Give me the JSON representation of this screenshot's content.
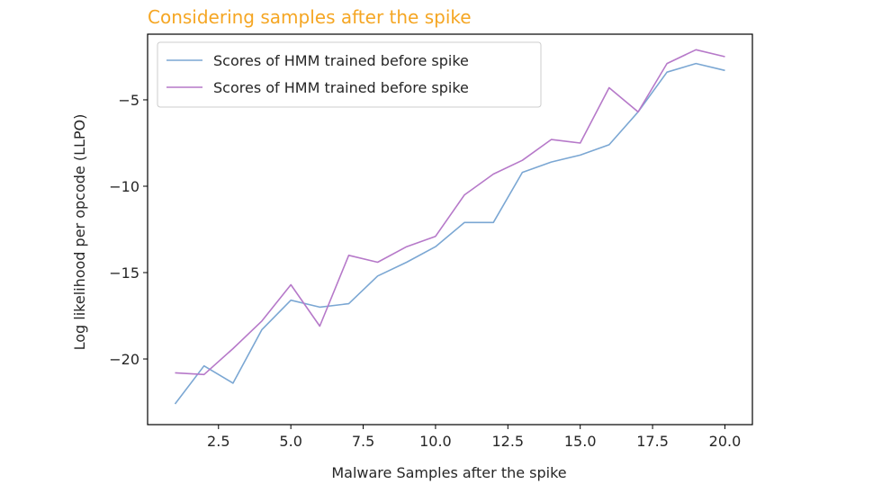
{
  "chart_data": {
    "type": "line",
    "title": "Considering samples after the spike",
    "title_color": "#f5a623",
    "xlabel": "Malware Samples after the spike",
    "ylabel": "Log likelihood per opcode (LLPO)",
    "xlim": [
      0.05,
      20.95
    ],
    "ylim": [
      -23.8,
      -1.2
    ],
    "xticks": [
      2.5,
      5.0,
      7.5,
      10.0,
      12.5,
      15.0,
      17.5,
      20.0
    ],
    "xtick_labels": [
      "2.5",
      "5.0",
      "7.5",
      "10.0",
      "12.5",
      "15.0",
      "17.5",
      "20.0"
    ],
    "yticks": [
      -20,
      -15,
      -10,
      -5
    ],
    "ytick_labels": [
      "−20",
      "−15",
      "−10",
      "−5"
    ],
    "legend_position": "top-left",
    "grid": false,
    "x": [
      1,
      2,
      3,
      4,
      5,
      6,
      7,
      8,
      9,
      10,
      11,
      12,
      13,
      14,
      15,
      16,
      17,
      18,
      19,
      20
    ],
    "series": [
      {
        "name": "Scores of HMM trained before spike",
        "color": "#7ba7d3",
        "values": [
          -22.6,
          -20.4,
          -21.4,
          -18.3,
          -16.6,
          -17.0,
          -16.8,
          -15.2,
          -14.4,
          -13.5,
          -12.1,
          -12.1,
          -9.2,
          -8.6,
          -8.2,
          -7.6,
          -5.7,
          -3.4,
          -2.9,
          -3.3
        ]
      },
      {
        "name": "Scores of HMM trained before spike",
        "color": "#b679c9",
        "values": [
          -20.8,
          -20.9,
          -19.4,
          -17.8,
          -15.7,
          -18.1,
          -14.0,
          -14.4,
          -13.5,
          -12.9,
          -10.5,
          -9.3,
          -8.5,
          -7.3,
          -7.5,
          -4.3,
          -5.7,
          -2.9,
          -2.1,
          -2.5
        ]
      }
    ]
  }
}
